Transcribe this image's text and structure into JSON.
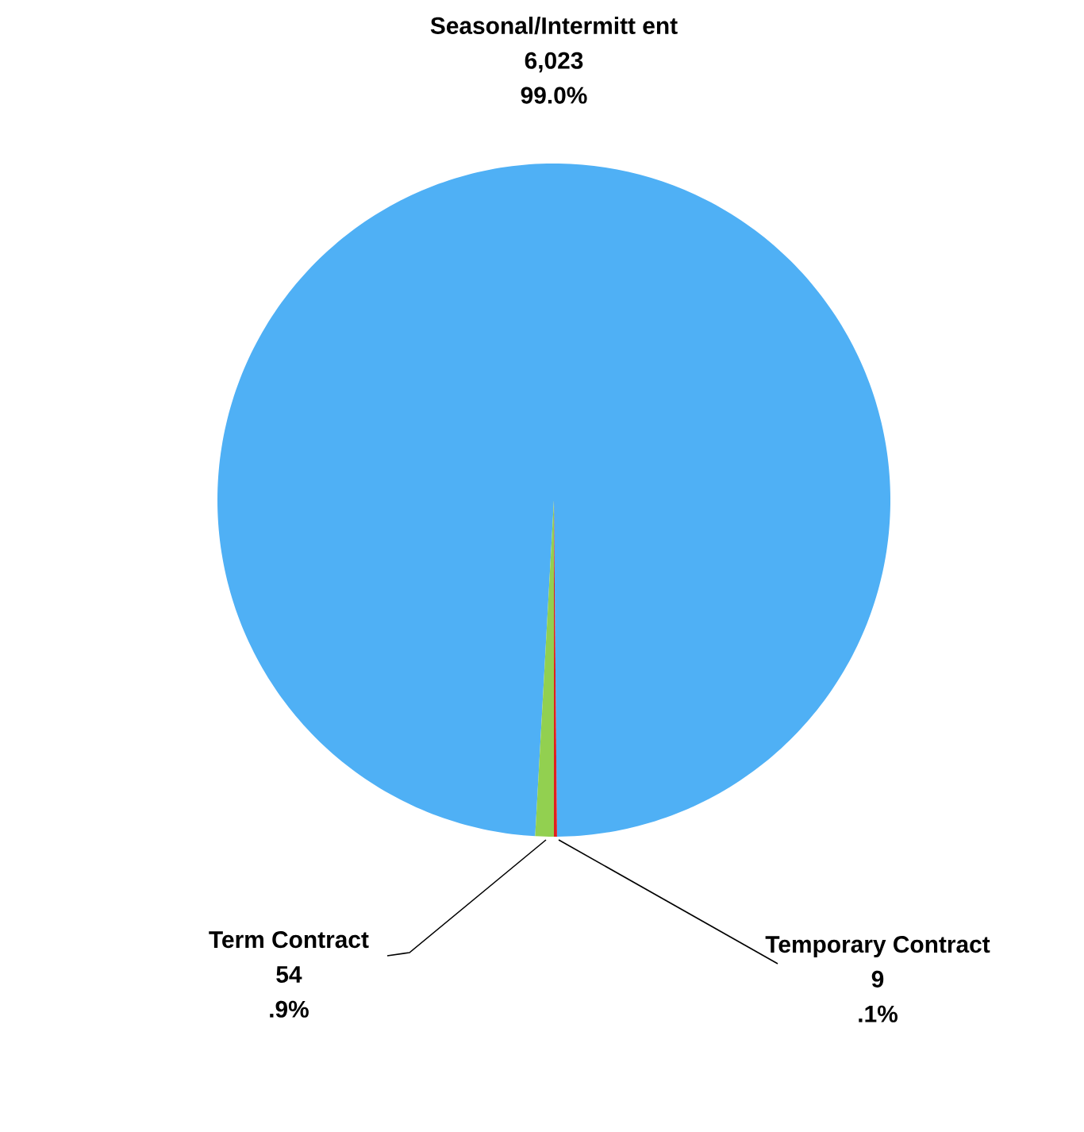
{
  "chart_data": {
    "type": "pie",
    "categories": [
      "Seasonal/Intermitt ent",
      "Term Contract",
      "Temporary Contract"
    ],
    "values": [
      6023,
      54,
      9
    ],
    "value_labels": [
      "6,023",
      "54",
      "9"
    ],
    "annotations": [
      "99.0%",
      ".9%",
      ".1%"
    ],
    "colors": [
      "#4fb0f5",
      "#92d050",
      "#e02020"
    ]
  }
}
